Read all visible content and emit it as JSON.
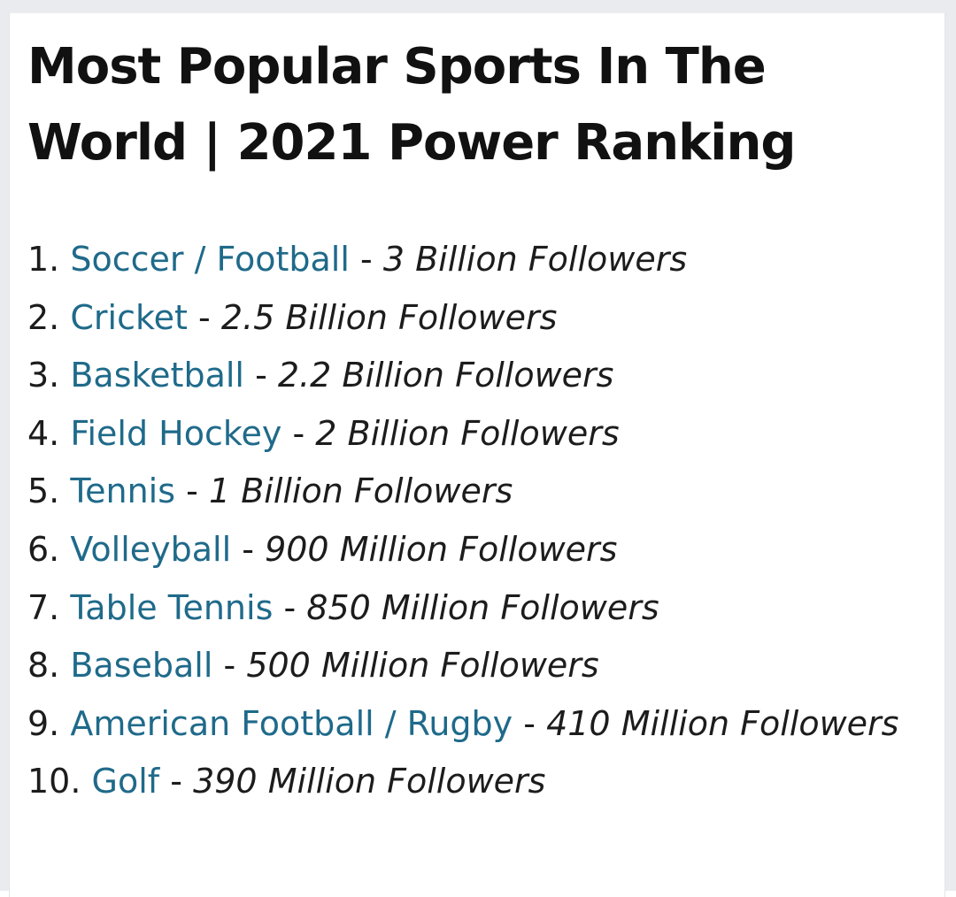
{
  "article": {
    "title": "Most Popular Sports In The World | 2021 Power Ranking"
  },
  "ranking": [
    {
      "rank": "1.",
      "sport": "Soccer / Football",
      "followers": "3 Billion Followers"
    },
    {
      "rank": "2.",
      "sport": "Cricket",
      "followers": "2.5 Billion Followers"
    },
    {
      "rank": "3.",
      "sport": "Basketball",
      "followers": "2.2 Billion Followers"
    },
    {
      "rank": "4.",
      "sport": "Field Hockey",
      "followers": "2 Billion Followers"
    },
    {
      "rank": "5.",
      "sport": "Tennis",
      "followers": "1 Billion Followers"
    },
    {
      "rank": "6.",
      "sport": "Volleyball",
      "followers": "900 Million Followers"
    },
    {
      "rank": "7.",
      "sport": "Table Tennis",
      "followers": "850 Million Followers"
    },
    {
      "rank": "8.",
      "sport": "Baseball",
      "followers": "500 Million Followers"
    },
    {
      "rank": "9.",
      "sport": "American Football / Rugby",
      "followers": "410 Million Followers"
    },
    {
      "rank": "10.",
      "sport": "Golf",
      "followers": "390 Million Followers"
    }
  ],
  "separator": "-",
  "colors": {
    "link": "#1f6a8a",
    "text": "#1c1c1c",
    "heading": "#111111"
  }
}
